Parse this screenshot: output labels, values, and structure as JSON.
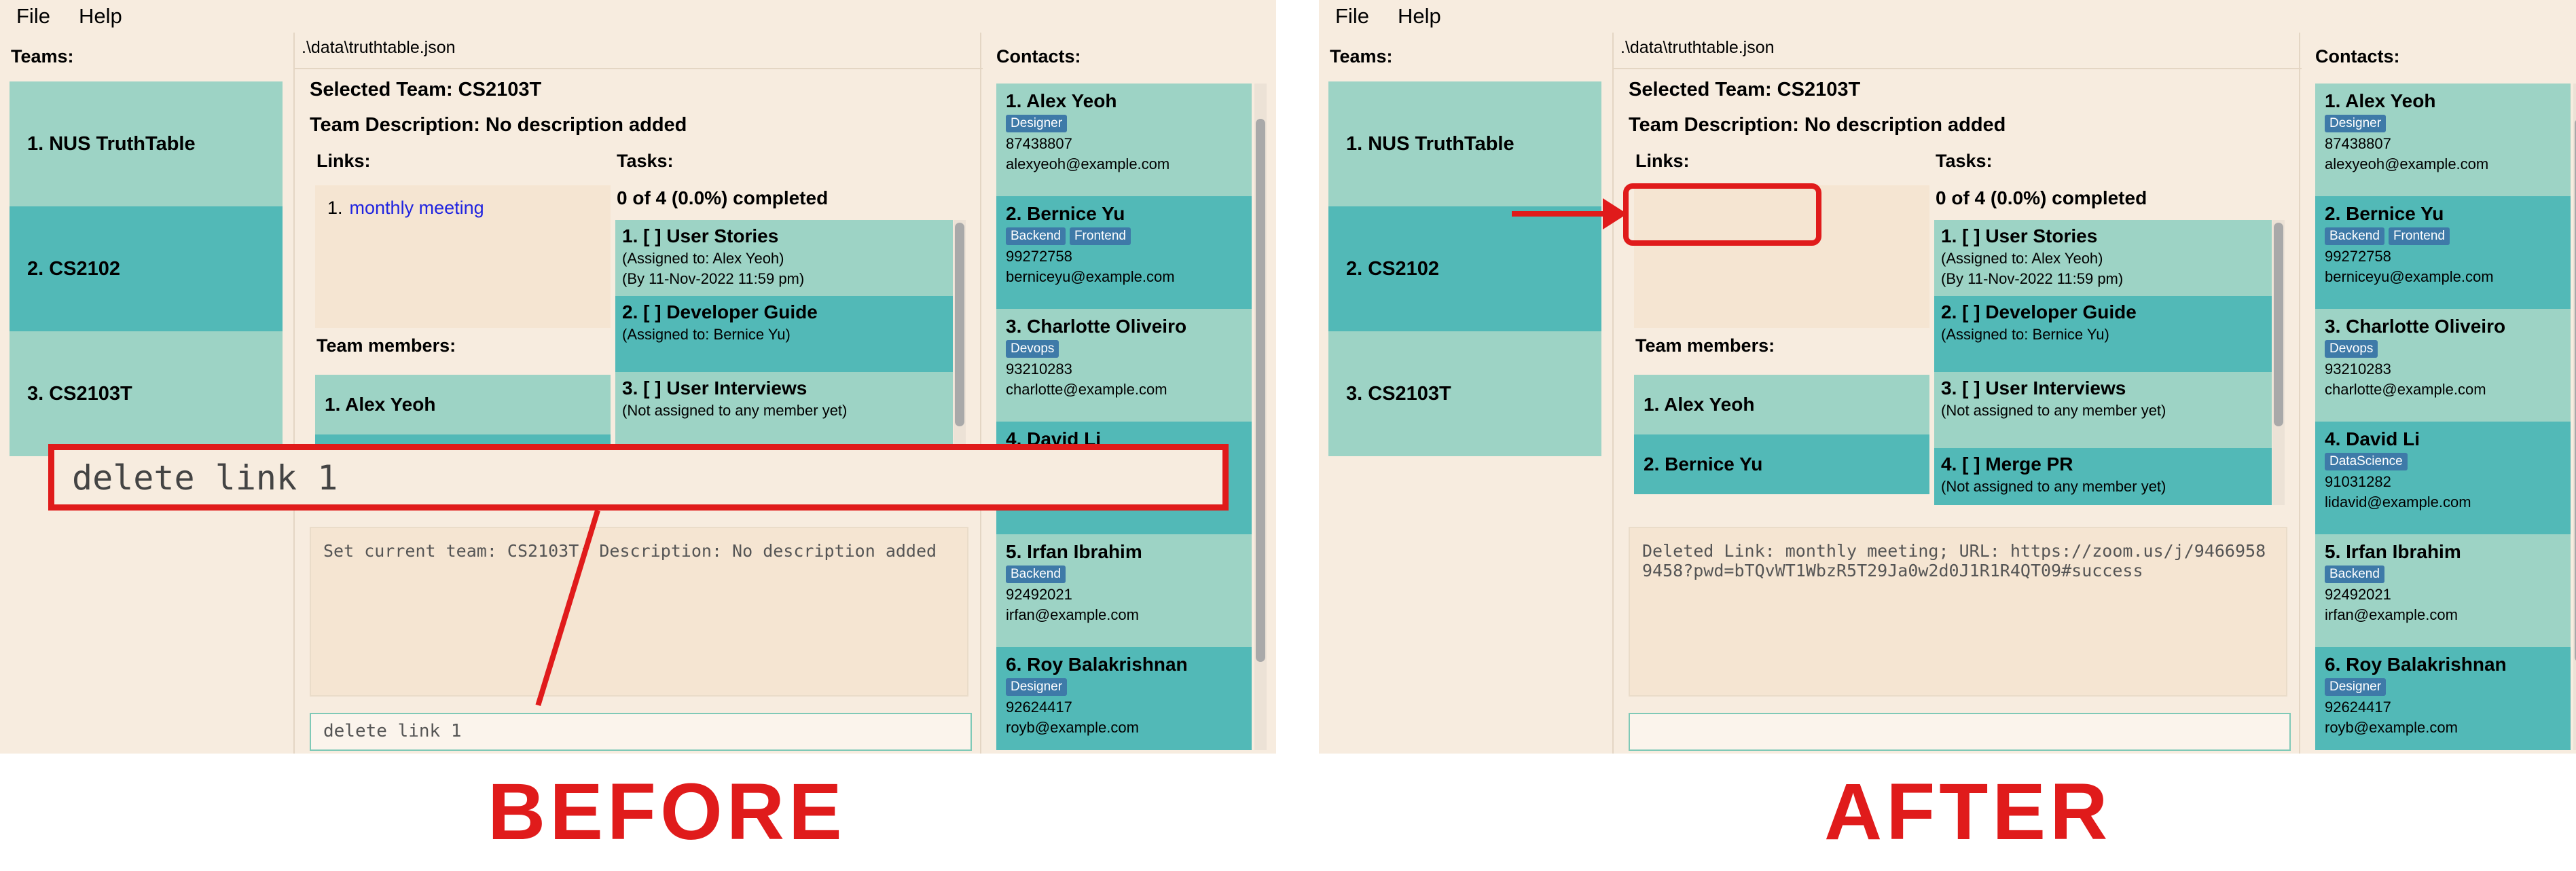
{
  "menu": [
    "File",
    "Help"
  ],
  "colors": {
    "annotation": "#e01b1b",
    "card_light": "#9dd3c5",
    "card_dark": "#52b9b7",
    "tag": "#3e7aa8",
    "link": "#1f23e0",
    "background": "#f7ecdf"
  },
  "teams_title": "Teams:",
  "teams": [
    "1. NUS TruthTable",
    "2. CS2102",
    "3. CS2103T"
  ],
  "file_path": ".\\data\\truthtable.json",
  "selected_team": "Selected Team: CS2103T",
  "team_description": "Team Description: No description added",
  "links_title": "Links:",
  "tasks_title": "Tasks:",
  "tasks_summary": "0 of 4 (0.0%) completed",
  "members_title": "Team members:",
  "members": [
    "1. Alex Yeoh",
    "2. Bernice Yu"
  ],
  "tasks": [
    {
      "title": "1. [ ] User Stories",
      "assigned": "(Assigned to: Alex Yeoh)",
      "deadline": "(By 11-Nov-2022 11:59 pm)"
    },
    {
      "title": "2. [ ] Developer Guide",
      "assigned": "(Assigned to: Bernice Yu)",
      "deadline": ""
    },
    {
      "title": "3. [ ] User Interviews",
      "assigned": "(Not assigned to any member yet)",
      "deadline": ""
    },
    {
      "title": "4. [ ] Merge PR",
      "assigned": "(Not assigned to any member yet)",
      "deadline": ""
    }
  ],
  "contacts_title": "Contacts:",
  "contacts": [
    {
      "name": "1. Alex Yeoh",
      "tags": [
        "Designer"
      ],
      "phone": "87438807",
      "email": "alexyeoh@example.com"
    },
    {
      "name": "2. Bernice Yu",
      "tags": [
        "Backend",
        "Frontend"
      ],
      "phone": "99272758",
      "email": "berniceyu@example.com"
    },
    {
      "name": "3. Charlotte Oliveiro",
      "tags": [
        "Devops"
      ],
      "phone": "93210283",
      "email": "charlotte@example.com"
    },
    {
      "name": "4. David Li",
      "tags": [
        "DataScience"
      ],
      "phone": "91031282",
      "email": "lidavid@example.com"
    },
    {
      "name": "5. Irfan Ibrahim",
      "tags": [
        "Backend"
      ],
      "phone": "92492021",
      "email": "irfan@example.com"
    },
    {
      "name": "6. Roy Balakrishnan",
      "tags": [
        "Designer"
      ],
      "phone": "92624417",
      "email": "royb@example.com"
    }
  ],
  "before": {
    "caption": "BEFORE",
    "link_number": "1.",
    "link_text": "monthly meeting",
    "result_text": "Set current team: CS2103T; Description: No description added",
    "command_text": "delete link 1",
    "annotation_text": "delete link 1"
  },
  "after": {
    "caption": "AFTER",
    "result_text": "Deleted Link: monthly meeting; URL: https://zoom.us/j/94669589458?pwd=bTQvWT1WbzR5T29Ja0w2d0J1R1R4QT09#success",
    "command_text": ""
  }
}
